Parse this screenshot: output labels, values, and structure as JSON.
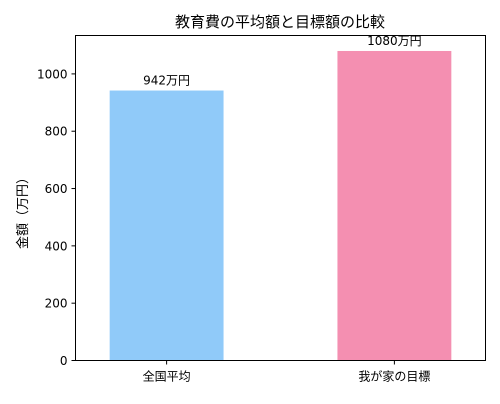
{
  "chart_data": {
    "type": "bar",
    "title": "教育費の平均額と目標額の比較",
    "xlabel": "",
    "ylabel": "金額（万円）",
    "categories": [
      "全国平均",
      "我が家の目標"
    ],
    "values": [
      942,
      1080
    ],
    "data_labels": [
      "942万円",
      "1080万円"
    ],
    "colors": [
      "#90caf9",
      "#f48fb1"
    ],
    "ylim": [
      0,
      1134
    ],
    "yticks": [
      0,
      200,
      400,
      600,
      800,
      1000
    ],
    "grid": false,
    "legend": "none"
  }
}
